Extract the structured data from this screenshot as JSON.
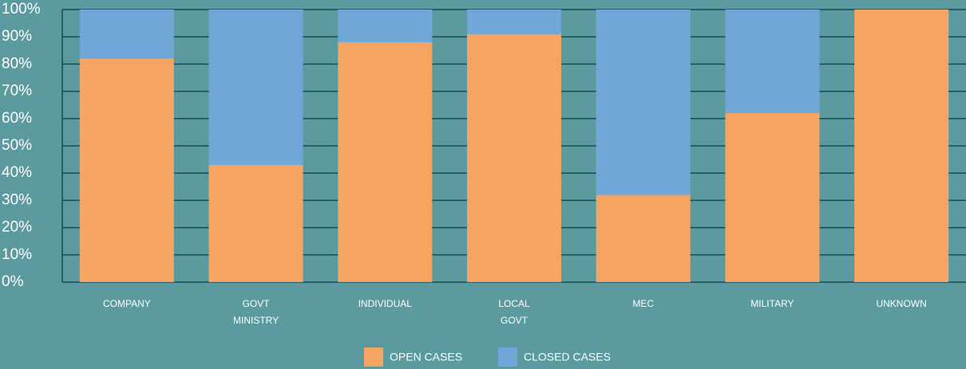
{
  "chart_data": {
    "type": "stacked_bar",
    "categories": [
      "COMPANY",
      "GOVT MINISTRY",
      "INDIVIDUAL",
      "LOCAL GOVT",
      "MEC",
      "MILITARY",
      "UNKNOWN"
    ],
    "series": [
      {
        "name": "OPEN CASES",
        "color": "#f6a462",
        "values": [
          82,
          43,
          88,
          91,
          32,
          62,
          100
        ]
      },
      {
        "name": "CLOSED CASES",
        "color": "#6fa8d8",
        "values": [
          18,
          57,
          12,
          9,
          68,
          38,
          0
        ]
      }
    ],
    "ylim": [
      0,
      100
    ],
    "yticks": [
      {
        "value": 0,
        "label": "0%"
      },
      {
        "value": 10,
        "label": "10%"
      },
      {
        "value": 20,
        "label": "20%"
      },
      {
        "value": 30,
        "label": "30%"
      },
      {
        "value": 40,
        "label": "40%"
      },
      {
        "value": 50,
        "label": "50%"
      },
      {
        "value": 60,
        "label": "60%"
      },
      {
        "value": 70,
        "label": "70%"
      },
      {
        "value": 80,
        "label": "80%"
      },
      {
        "value": 90,
        "label": "90%"
      },
      {
        "value": 100,
        "label": "100%"
      }
    ],
    "grid": true,
    "legend": "bottom"
  }
}
